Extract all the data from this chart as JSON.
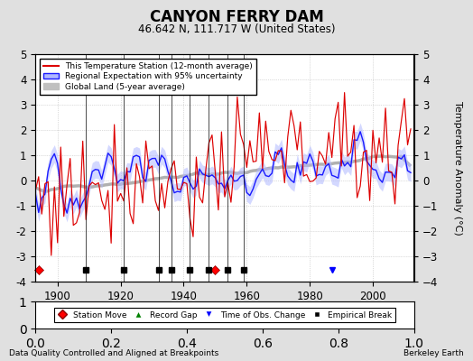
{
  "title": "CANYON FERRY DAM",
  "subtitle": "46.642 N, 111.717 W (United States)",
  "ylabel": "Temperature Anomaly (°C)",
  "footer_left": "Data Quality Controlled and Aligned at Breakpoints",
  "footer_right": "Berkeley Earth",
  "xlim": [
    1893,
    2013
  ],
  "ylim": [
    -4,
    5
  ],
  "yticks": [
    -4,
    -3,
    -2,
    -1,
    0,
    1,
    2,
    3,
    4,
    5
  ],
  "xticks": [
    1900,
    1920,
    1940,
    1960,
    1980,
    2000
  ],
  "bg_color": "#e0e0e0",
  "plot_bg_color": "#ffffff",
  "grid_color": "#bbbbbb",
  "grid_linestyle": ":",
  "station_move_years": [
    1894,
    1950
  ],
  "record_gap_years": [],
  "obs_change_years": [
    1987
  ],
  "empirical_break_years": [
    1909,
    1921,
    1932,
    1936,
    1942,
    1948,
    1954,
    1959
  ],
  "seed": 77,
  "station_color": "#dd0000",
  "regional_color": "#1a1aff",
  "regional_fill_color": "#b0b8ff",
  "global_color": "#b0b0b0",
  "start_year": 1893,
  "end_year": 2012
}
